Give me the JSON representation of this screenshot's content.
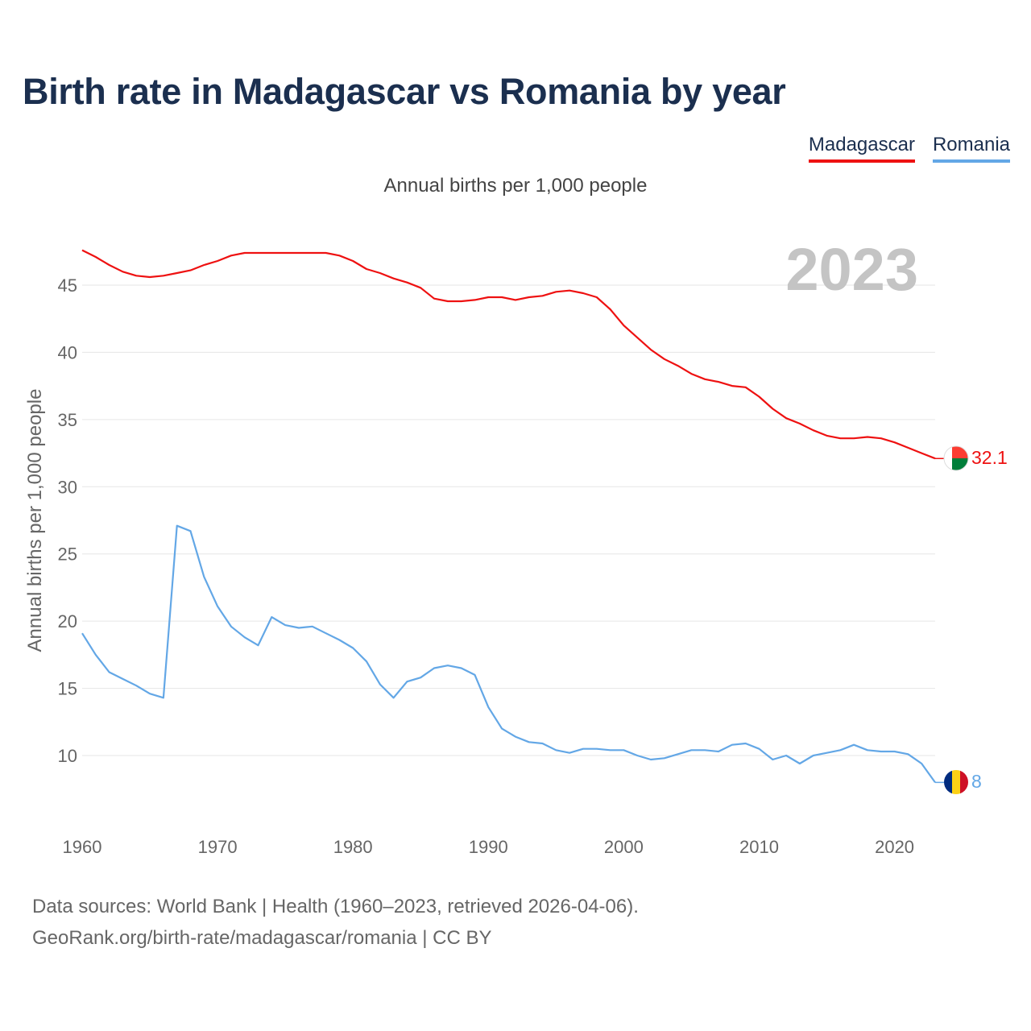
{
  "title": "Birth rate in Madagascar vs Romania by year",
  "subtitle": "Annual births per 1,000 people",
  "legend": [
    {
      "name": "Madagascar",
      "color": "#ee1111"
    },
    {
      "name": "Romania",
      "color": "#63a7e6"
    }
  ],
  "footer": {
    "line1": "Data sources: World Bank | Health (1960–2023, retrieved 2026-04-06).",
    "line2": "GeoRank.org/birth-rate/madagascar/romania | CC BY"
  },
  "chart_data": {
    "type": "line",
    "title": "Birth rate in Madagascar vs Romania by year",
    "ylabel": "Annual births per 1,000 people",
    "xlabel": "",
    "year_label": "2023",
    "xlim": [
      1960,
      2023
    ],
    "ylim": [
      5,
      48
    ],
    "yticks": [
      10,
      15,
      20,
      25,
      30,
      35,
      40,
      45
    ],
    "xticks": [
      1960,
      1970,
      1980,
      1990,
      2000,
      2010,
      2020
    ],
    "grid": true,
    "x": [
      1960,
      1961,
      1962,
      1963,
      1964,
      1965,
      1966,
      1967,
      1968,
      1969,
      1970,
      1971,
      1972,
      1973,
      1974,
      1975,
      1976,
      1977,
      1978,
      1979,
      1980,
      1981,
      1982,
      1983,
      1984,
      1985,
      1986,
      1987,
      1988,
      1989,
      1990,
      1991,
      1992,
      1993,
      1994,
      1995,
      1996,
      1997,
      1998,
      1999,
      2000,
      2001,
      2002,
      2003,
      2004,
      2005,
      2006,
      2007,
      2008,
      2009,
      2010,
      2011,
      2012,
      2013,
      2014,
      2015,
      2016,
      2017,
      2018,
      2019,
      2020,
      2021,
      2022,
      2023
    ],
    "series": [
      {
        "name": "Madagascar",
        "color": "#ee1111",
        "end_label": "32.1",
        "values": [
          47.6,
          47.1,
          46.5,
          46.0,
          45.7,
          45.6,
          45.7,
          45.9,
          46.1,
          46.5,
          46.8,
          47.2,
          47.4,
          47.4,
          47.4,
          47.4,
          47.4,
          47.4,
          47.4,
          47.2,
          46.8,
          46.2,
          45.9,
          45.5,
          45.2,
          44.8,
          44.0,
          43.8,
          43.8,
          43.9,
          44.1,
          44.1,
          43.9,
          44.1,
          44.2,
          44.5,
          44.6,
          44.4,
          44.1,
          43.2,
          42.0,
          41.1,
          40.2,
          39.5,
          39.0,
          38.4,
          38.0,
          37.8,
          37.5,
          37.4,
          36.7,
          35.8,
          35.1,
          34.7,
          34.2,
          33.8,
          33.6,
          33.6,
          33.7,
          33.6,
          33.3,
          32.9,
          32.5,
          32.1
        ]
      },
      {
        "name": "Romania",
        "color": "#63a7e6",
        "end_label": "8",
        "values": [
          19.1,
          17.5,
          16.2,
          15.7,
          15.2,
          14.6,
          14.3,
          27.1,
          26.7,
          23.3,
          21.1,
          19.6,
          18.8,
          18.2,
          20.3,
          19.7,
          19.5,
          19.6,
          19.1,
          18.6,
          18.0,
          17.0,
          15.3,
          14.3,
          15.5,
          15.8,
          16.5,
          16.7,
          16.5,
          16.0,
          13.6,
          12.0,
          11.4,
          11.0,
          10.9,
          10.4,
          10.2,
          10.5,
          10.5,
          10.4,
          10.4,
          10.0,
          9.7,
          9.8,
          10.1,
          10.4,
          10.4,
          10.3,
          10.8,
          10.9,
          10.5,
          9.7,
          10.0,
          9.4,
          10.0,
          10.2,
          10.4,
          10.8,
          10.4,
          10.3,
          10.3,
          10.1,
          9.4,
          8.0
        ]
      }
    ]
  }
}
